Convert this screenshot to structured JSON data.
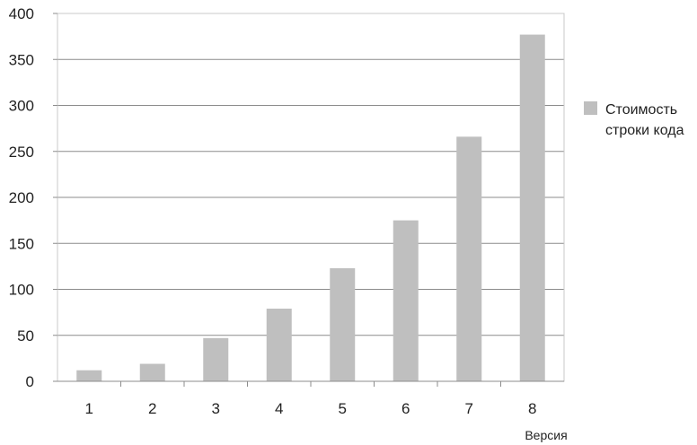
{
  "chart_data": {
    "type": "bar",
    "categories": [
      "1",
      "2",
      "3",
      "4",
      "5",
      "6",
      "7",
      "8"
    ],
    "series": [
      {
        "name": "Стоимость строки кода",
        "values": [
          12,
          19,
          47,
          79,
          123,
          175,
          266,
          377
        ]
      }
    ],
    "legend_lines": [
      "Стоимость",
      "строки кода"
    ],
    "xlabel": "Версия",
    "ylabel": "",
    "ylim": [
      0,
      400
    ],
    "yticks": [
      "0",
      "50",
      "100",
      "150",
      "200",
      "250",
      "300",
      "350",
      "400"
    ],
    "grid": true,
    "legend_position": "right",
    "colors": {
      "bar": "#bfbfbf",
      "grid": "#8c8c8c",
      "axis": "#8c8c8c",
      "plot_border": "#c8c8c8"
    }
  }
}
